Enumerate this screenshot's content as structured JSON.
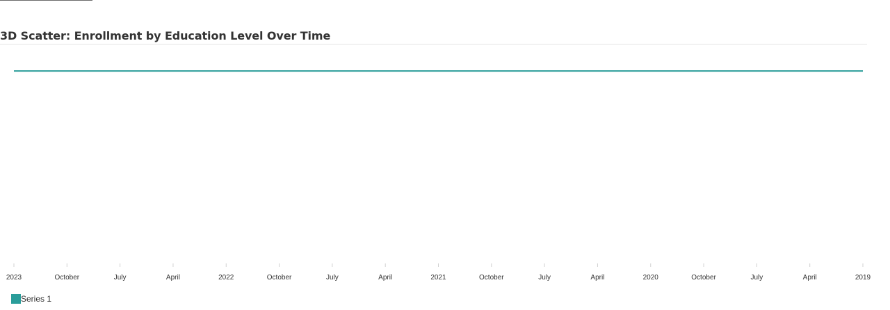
{
  "chart_data": {
    "type": "line",
    "title": "3D Scatter: Enrollment by Education Level Over Time",
    "xlabel": "",
    "ylabel": "",
    "x_ticks": [
      "2023",
      "October",
      "July",
      "April",
      "2022",
      "October",
      "July",
      "April",
      "2021",
      "October",
      "July",
      "April",
      "2020",
      "October",
      "July",
      "April",
      "2019"
    ],
    "x": [
      "2023-01-01",
      "2019-01-01"
    ],
    "series": [
      {
        "name": "Series 1",
        "color": "#2a9d9a",
        "values": [
          1,
          1
        ]
      }
    ],
    "ylim": [
      0,
      1.14
    ],
    "grid": false,
    "legend_position": "bottom-left"
  }
}
